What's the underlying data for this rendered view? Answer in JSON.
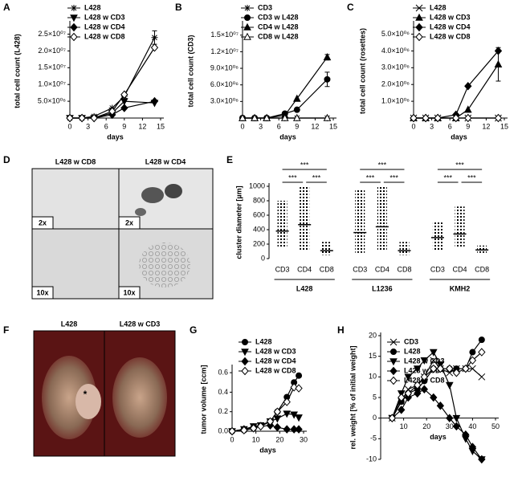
{
  "chart_data": [
    {
      "type": "line",
      "panel": "A",
      "y_title": "total cell count (L428)",
      "x_title": "days",
      "legend": "top-left",
      "x": [
        0,
        2,
        4,
        7,
        9,
        14
      ],
      "xlim": [
        0,
        15
      ],
      "xticks": [
        0,
        3,
        6,
        9,
        12,
        15
      ],
      "ylim": [
        0,
        28000000
      ],
      "yticks": [
        {
          "value": 5000000,
          "label": "5.0×10⁰⁶"
        },
        {
          "value": 10000000,
          "label": "1.0×10⁰⁷"
        },
        {
          "value": 15000000,
          "label": "1.5×10⁰⁷"
        },
        {
          "value": 20000000,
          "label": "2.0×10⁰⁷"
        },
        {
          "value": 25000000,
          "label": "2.5×10⁰⁷"
        }
      ],
      "series": [
        {
          "name": "L428",
          "marker": "asterisk",
          "color": "#000000",
          "values": [
            0,
            0,
            500000,
            3000000,
            6500000,
            24000000
          ],
          "errors": [
            null,
            null,
            null,
            null,
            null,
            2000000
          ]
        },
        {
          "name": "L428 w CD3",
          "marker": "triangle-down",
          "color": "#000000",
          "values": [
            0,
            0,
            0,
            1500000,
            5000000,
            4500000
          ]
        },
        {
          "name": "L428 w CD4",
          "marker": "diamond",
          "color": "#000000",
          "values": [
            0,
            0,
            0,
            1000000,
            3000000,
            5000000
          ]
        },
        {
          "name": "L428 w CD8",
          "marker": "diamond-open",
          "color": "#000000",
          "values": [
            0,
            0,
            0,
            2000000,
            7000000,
            21000000
          ]
        }
      ]
    },
    {
      "type": "line",
      "panel": "B",
      "y_title": "total cell count (CD3)",
      "x_title": "days",
      "legend": "top-left",
      "x": [
        0,
        2,
        4,
        7,
        9,
        14
      ],
      "xlim": [
        0,
        15
      ],
      "xticks": [
        0,
        3,
        6,
        9,
        12,
        15
      ],
      "ylim": [
        0,
        17000000
      ],
      "yticks": [
        {
          "value": 3000000,
          "label": "3.0×10⁰⁶"
        },
        {
          "value": 6000000,
          "label": "6.0×10⁰⁶"
        },
        {
          "value": 9000000,
          "label": "9.0×10⁰⁶"
        },
        {
          "value": 12000000,
          "label": "1.2×10⁰⁷"
        },
        {
          "value": 15000000,
          "label": "1.5×10⁰⁷"
        }
      ],
      "series": [
        {
          "name": "CD3",
          "marker": "asterisk",
          "color": "#000000",
          "values": [
            0,
            0,
            0,
            0,
            0,
            0
          ]
        },
        {
          "name": "CD3 w L428",
          "marker": "circle",
          "color": "#000000",
          "values": [
            0,
            0,
            0,
            800000,
            1500000,
            7000000
          ],
          "errors": [
            null,
            null,
            null,
            null,
            null,
            1300000
          ]
        },
        {
          "name": "CD4 w L428",
          "marker": "triangle",
          "color": "#000000",
          "values": [
            0,
            0,
            0,
            500000,
            3500000,
            11000000
          ],
          "errors": [
            null,
            null,
            null,
            null,
            null,
            500000
          ]
        },
        {
          "name": "CD8 w L428",
          "marker": "triangle-open",
          "color": "#000000",
          "values": [
            0,
            0,
            0,
            0,
            0,
            0
          ]
        }
      ]
    },
    {
      "type": "line",
      "panel": "C",
      "y_title": "total cell count (rosettes)",
      "x_title": "days",
      "legend": "top-left",
      "x": [
        0,
        2,
        4,
        7,
        9,
        14
      ],
      "xlim": [
        0,
        15
      ],
      "xticks": [
        0,
        3,
        6,
        9,
        12,
        15
      ],
      "ylim": [
        0,
        5600000
      ],
      "yticks": [
        {
          "value": 1000000,
          "label": "1.0×10⁰⁶"
        },
        {
          "value": 2000000,
          "label": "2.0×10⁰⁶"
        },
        {
          "value": 3000000,
          "label": "3.0×10⁰⁶"
        },
        {
          "value": 4000000,
          "label": "4.0×10⁰⁶"
        },
        {
          "value": 5000000,
          "label": "5.0×10⁰⁶"
        }
      ],
      "series": [
        {
          "name": "L428",
          "marker": "x",
          "color": "#000000",
          "values": [
            0,
            0,
            0,
            0,
            0,
            0
          ]
        },
        {
          "name": "L428 w CD3",
          "marker": "triangle",
          "color": "#000000",
          "values": [
            0,
            0,
            0,
            0,
            500000,
            3200000
          ],
          "errors": [
            null,
            null,
            null,
            null,
            null,
            1000000
          ]
        },
        {
          "name": "L428 w CD4",
          "marker": "diamond",
          "color": "#000000",
          "values": [
            0,
            0,
            0,
            200000,
            1900000,
            4000000
          ]
        },
        {
          "name": "L428 w CD8",
          "marker": "diamond-open",
          "color": "#000000",
          "values": [
            0,
            0,
            0,
            0,
            0,
            0
          ]
        }
      ]
    },
    {
      "type": "strip",
      "panel": "E",
      "y_title": "cluster diameter [µm]",
      "ylim": [
        0,
        1000
      ],
      "yticks": [
        0,
        200,
        400,
        600,
        800,
        1000
      ],
      "color": "#000000",
      "groups": [
        {
          "name": "L428",
          "categories": [
            "CD3",
            "CD4",
            "CD8"
          ],
          "min": [
            150,
            100,
            50
          ],
          "median": [
            380,
            470,
            110
          ],
          "max": [
            800,
            1000,
            230
          ],
          "annotations": [
            "***",
            "***",
            "***"
          ]
        },
        {
          "name": "L1236",
          "categories": [
            "CD3",
            "CD4",
            "CD8"
          ],
          "min": [
            80,
            100,
            50
          ],
          "median": [
            360,
            440,
            110
          ],
          "max": [
            950,
            1000,
            230
          ],
          "annotations": [
            "***",
            "***",
            "***"
          ]
        },
        {
          "name": "KMH2",
          "categories": [
            "CD3",
            "CD4",
            "CD8"
          ],
          "min": [
            100,
            150,
            80
          ],
          "median": [
            290,
            340,
            120
          ],
          "max": [
            500,
            720,
            180
          ],
          "annotations": [
            "***",
            "***",
            "***"
          ]
        }
      ]
    },
    {
      "type": "line",
      "panel": "G",
      "y_title": "tumor volume [ccm]",
      "x_title": "days",
      "legend": "top-left",
      "x": [
        0,
        5,
        9,
        12,
        16,
        19,
        23,
        26,
        28
      ],
      "xlim": [
        0,
        30
      ],
      "xticks": [
        0,
        10,
        20,
        30
      ],
      "ylim": [
        0,
        0.65
      ],
      "yticks": [
        {
          "value": 0,
          "label": "0.0"
        },
        {
          "value": 0.2,
          "label": "0.2"
        },
        {
          "value": 0.4,
          "label": "0.4"
        },
        {
          "value": 0.6,
          "label": "0.6"
        }
      ],
      "series": [
        {
          "name": "L428",
          "marker": "circle",
          "color": "#000000",
          "values": [
            0,
            0.01,
            0.03,
            0.06,
            0.1,
            0.2,
            0.35,
            0.5,
            0.57
          ]
        },
        {
          "name": "L428 w CD3",
          "marker": "triangle-down",
          "color": "#000000",
          "values": [
            0,
            0.02,
            0.05,
            0.06,
            0.1,
            0.13,
            0.18,
            0.17,
            0.14
          ]
        },
        {
          "name": "L428 w CD4",
          "marker": "diamond",
          "color": "#000000",
          "values": [
            0,
            0.02,
            0.04,
            0.05,
            0.06,
            0.04,
            0.02,
            0.02,
            0.02
          ]
        },
        {
          "name": "L428 w CD8",
          "marker": "diamond-open",
          "color": "#000000",
          "values": [
            0,
            0.01,
            0.03,
            0.05,
            0.1,
            0.2,
            0.3,
            0.45,
            0.44
          ]
        }
      ]
    },
    {
      "type": "line",
      "panel": "H",
      "y_title": "rel. weight [% of initial weight]",
      "x_title": "days",
      "legend": "top-left",
      "x": [
        5,
        9,
        12,
        16,
        19,
        23,
        26,
        30,
        33,
        37,
        40,
        44
      ],
      "xlim": [
        0,
        50
      ],
      "xticks": [
        10,
        20,
        30,
        40,
        50
      ],
      "ylim": [
        -10,
        20
      ],
      "yticks": [
        -10,
        -5,
        0,
        5,
        10,
        15,
        20
      ],
      "series": [
        {
          "name": "CD3",
          "marker": "x",
          "color": "#000000",
          "values": [
            0,
            4,
            7,
            8,
            10,
            14,
            12,
            11,
            12,
            12,
            12,
            10
          ]
        },
        {
          "name": "L428",
          "marker": "circle",
          "color": "#000000",
          "values": [
            0,
            4,
            6,
            7,
            9,
            12,
            12,
            12,
            12,
            12,
            16,
            19
          ]
        },
        {
          "name": "L428 w CD3",
          "marker": "triangle-down",
          "color": "#000000",
          "values": [
            0,
            6,
            10,
            12,
            14,
            16,
            13,
            8,
            0,
            -5,
            -8,
            -10
          ]
        },
        {
          "name": "L428 w CD4",
          "marker": "diamond",
          "color": "#000000",
          "values": [
            0,
            2,
            5,
            6,
            7,
            5,
            3,
            0,
            -2,
            -4,
            -7,
            -10
          ]
        },
        {
          "name": "L428 w CD8",
          "marker": "diamond-open",
          "color": "#000000",
          "values": [
            0,
            5,
            6,
            8,
            10,
            12,
            12,
            12,
            11,
            12,
            14,
            16
          ]
        }
      ]
    }
  ],
  "images": [
    {
      "panel": "D",
      "columns": [
        "L428 w CD8",
        "L428 w CD4"
      ],
      "magnifications": [
        "2x",
        "2x",
        "10x",
        "10x"
      ]
    },
    {
      "panel": "F",
      "columns": [
        "L428",
        "L428 w CD3"
      ],
      "annotation": "*"
    }
  ]
}
